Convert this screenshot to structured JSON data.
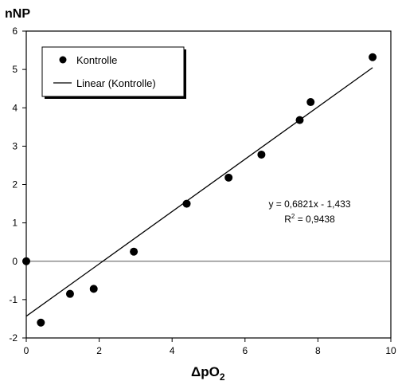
{
  "chart_data": {
    "type": "scatter",
    "ylabel": "nNP",
    "xlabel_main": "ΔpO",
    "xlabel_sub": "2",
    "xlim": [
      0,
      10
    ],
    "ylim": [
      -2,
      6
    ],
    "xticks": [
      0,
      2,
      4,
      6,
      8,
      10
    ],
    "yticks": [
      -2,
      -1,
      0,
      1,
      2,
      3,
      4,
      5,
      6
    ],
    "grid": false,
    "zero_line": true,
    "series": [
      {
        "name": "Kontrolle",
        "marker": "circle",
        "color": "#000000",
        "points": [
          {
            "x": 0.0,
            "y": 0.0
          },
          {
            "x": 0.4,
            "y": -1.6
          },
          {
            "x": 1.2,
            "y": -0.85
          },
          {
            "x": 1.85,
            "y": -0.72
          },
          {
            "x": 2.95,
            "y": 0.25
          },
          {
            "x": 4.4,
            "y": 1.5
          },
          {
            "x": 5.55,
            "y": 2.18
          },
          {
            "x": 6.45,
            "y": 2.78
          },
          {
            "x": 7.5,
            "y": 3.68
          },
          {
            "x": 7.8,
            "y": 4.15
          },
          {
            "x": 9.5,
            "y": 5.32
          }
        ]
      }
    ],
    "trendline": {
      "name": "Linear (Kontrolle)",
      "slope": 0.6821,
      "intercept": -1.433,
      "x_range": [
        0,
        9.5
      ],
      "color": "#000000"
    },
    "annotations": {
      "equation": "y = 0,6821x - 1,433",
      "r2_prefix": "R",
      "r2_sup": "2",
      "r2_suffix": " = 0,9438"
    },
    "legend": {
      "placement": "top-left",
      "entries": [
        "Kontrolle",
        "Linear (Kontrolle)"
      ]
    }
  }
}
